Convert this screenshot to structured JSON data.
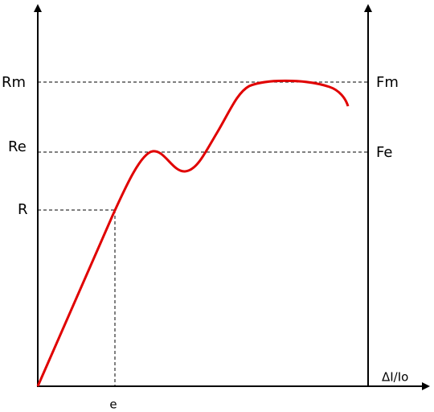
{
  "left_labels": {
    "rm": "Rm",
    "re": "Re",
    "r": "R"
  },
  "right_labels": {
    "fm": "Fm",
    "fe": "Fe"
  },
  "x_axis_label": "ΔI/Io",
  "strain_label": "e"
}
